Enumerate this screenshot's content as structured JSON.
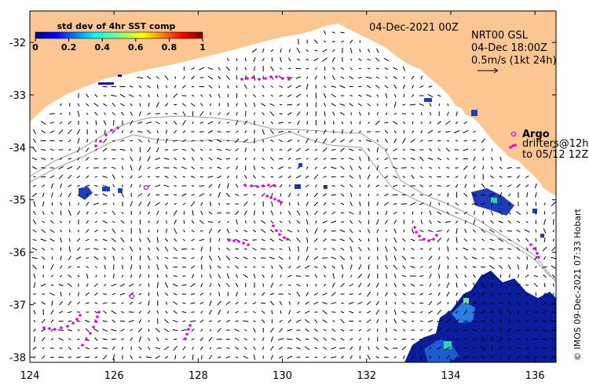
{
  "map": {
    "datetime": "04-Dec-2021 00Z",
    "product": "NRT00 GSL",
    "velocity_time": "04-Dec 18:00Z",
    "scale_label": "0.5m/s (1kt 24h)",
    "credit": "© IMOS 09-Dec-2021 07:33 Hobart",
    "land_color": "#fcc693",
    "argo_color": "#e000e0",
    "lon_range": [
      124,
      136.5
    ],
    "lat_range": [
      -38.1,
      -31.4
    ]
  },
  "colorbar": {
    "title": "std dev of 4hr SST comp",
    "ticks": [
      "0",
      "0.2",
      "0.4",
      "0.6",
      "0.8",
      "1"
    ]
  },
  "axes": {
    "x_ticks": [
      "124",
      "126",
      "128",
      "130",
      "132",
      "134",
      "136"
    ],
    "y_ticks": [
      "-32",
      "-33",
      "-34",
      "-35",
      "-36",
      "-37",
      "-38"
    ]
  },
  "legend": {
    "argo_label": "Argo",
    "drifters_label": "drifters@12h",
    "drifters_range": "to 05/12 12Z"
  }
}
